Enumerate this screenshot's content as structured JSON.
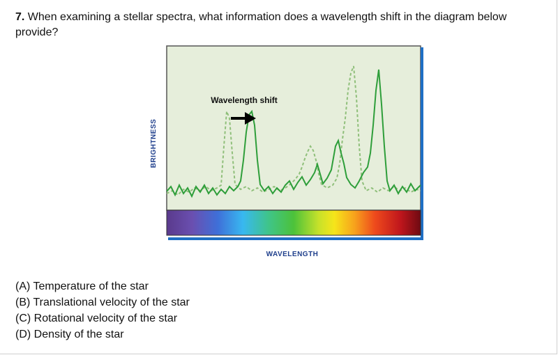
{
  "question": {
    "number": "7.",
    "text": "When examining a stellar spectra, what information does a wavelength shift in the diagram below provide?"
  },
  "figure": {
    "annotation": "Wavelength shift",
    "y_axis_label": "BRIGHTNESS",
    "x_axis_label": "WAVELENGTH",
    "colors": {
      "plot_bg": "#e6eedb",
      "solid_line": "#2e9e3a",
      "dashed_line": "#8fbf7a",
      "axis_frame": "#1f6fc4",
      "arrow": "#000000"
    }
  },
  "options": [
    "(A) Temperature of the star",
    "(B) Translational velocity of the star",
    "(C) Rotational velocity of the star",
    "(D) Density of the star"
  ]
}
